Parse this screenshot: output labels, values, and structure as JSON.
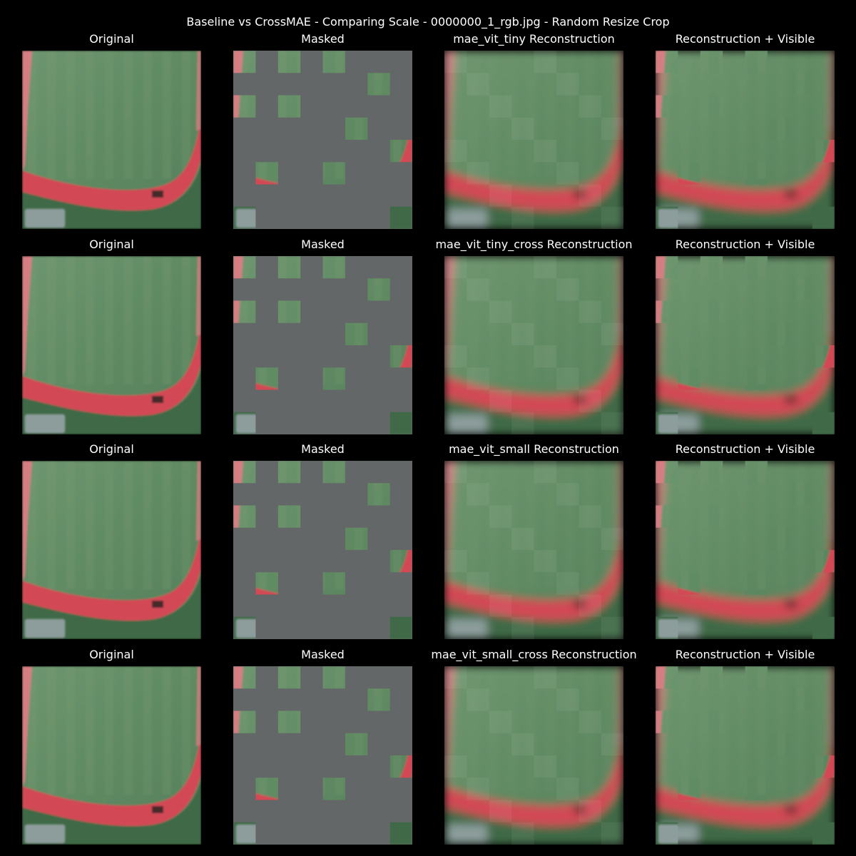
{
  "figure": {
    "suptitle": "Baseline vs CrossMAE - Comparing Scale - 0000000_1_rgb.jpg - Random Resize Crop"
  },
  "rows": [
    {
      "model": "mae_vit_tiny",
      "titles": [
        "Original",
        "Masked",
        "mae_vit_tiny Reconstruction",
        "Reconstruction + Visible"
      ]
    },
    {
      "model": "mae_vit_tiny_cross",
      "titles": [
        "Original",
        "Masked",
        "mae_vit_tiny_cross Reconstruction",
        "Reconstruction + Visible"
      ]
    },
    {
      "model": "mae_vit_small",
      "titles": [
        "Original",
        "Masked",
        "mae_vit_small Reconstruction",
        "Reconstruction + Visible"
      ]
    },
    {
      "model": "mae_vit_small_cross",
      "titles": [
        "Original",
        "Masked",
        "mae_vit_small_cross Reconstruction",
        "Reconstruction + Visible"
      ]
    }
  ],
  "colors": {
    "background": "#000000",
    "mask_gray": "#636767",
    "field_green": "#5f8a62",
    "field_light": "#7b9b72",
    "track_red": "#d24a55",
    "track_pink": "#e87a86",
    "grass_dark": "#3f6a47",
    "parking_gray": "#a0aab0"
  }
}
